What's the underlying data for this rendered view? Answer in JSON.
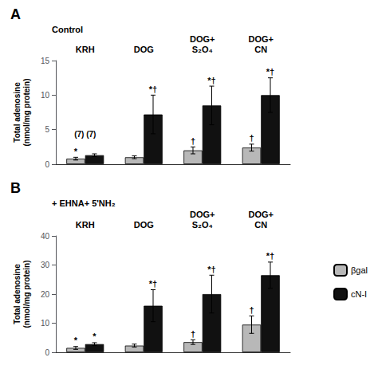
{
  "chart_data": [
    {
      "type": "bar",
      "title": "A",
      "subtitle": "Control",
      "categories": [
        "KRH",
        "DOG",
        "DOG+\nS₂O₄",
        "DOG+\nCN"
      ],
      "series": [
        {
          "name": "βgal",
          "color": "#b8b8b8",
          "values": [
            0.8,
            1.0,
            2.0,
            2.4
          ],
          "errors": [
            0.2,
            0.2,
            0.5,
            0.5
          ],
          "annotations": [
            "*",
            null,
            "†",
            "†"
          ]
        },
        {
          "name": "cN-I",
          "color": "#111111",
          "values": [
            1.3,
            7.2,
            8.5,
            10.0
          ],
          "errors": [
            0.2,
            2.8,
            2.8,
            2.5
          ],
          "annotations": [
            null,
            "*†",
            "*†",
            "*†"
          ]
        }
      ],
      "ylim": [
        0,
        15
      ],
      "yticks": [
        0,
        5,
        10,
        15
      ],
      "ylabel": "Total adenosine\n(nmol/mg protein)",
      "grid": false,
      "sample_label": "(7) (7)"
    },
    {
      "type": "bar",
      "title": "B",
      "subtitle": "+ EHNA+ 5'NH₂",
      "categories": [
        "KRH",
        "DOG",
        "DOG+\nS₂O₄",
        "DOG+\nCN"
      ],
      "series": [
        {
          "name": "βgal",
          "color": "#b8b8b8",
          "values": [
            1.5,
            2.3,
            3.5,
            9.5
          ],
          "errors": [
            0.5,
            0.5,
            0.8,
            3.0
          ],
          "annotations": [
            "*",
            null,
            "†",
            "†"
          ]
        },
        {
          "name": "cN-I",
          "color": "#111111",
          "values": [
            2.8,
            16.0,
            20.0,
            26.5
          ],
          "errors": [
            0.5,
            5.5,
            6.5,
            4.5
          ],
          "annotations": [
            "*",
            "*†",
            "*†",
            "*†"
          ]
        }
      ],
      "ylim": [
        0,
        40
      ],
      "yticks": [
        0,
        10,
        20,
        30,
        40
      ],
      "ylabel": "Total adenosine\n(nmol/mg protein)",
      "grid": false,
      "legend": "right"
    }
  ]
}
